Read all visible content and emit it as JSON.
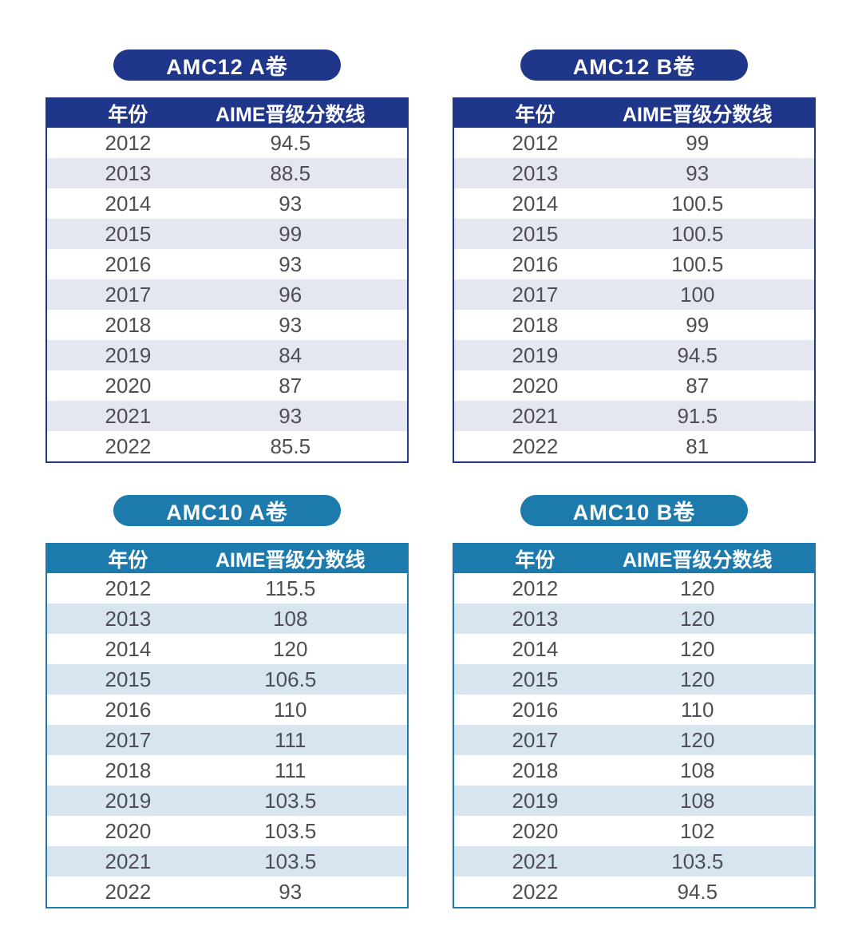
{
  "colors": {
    "navy": "#20368a",
    "teal": "#1d7aad",
    "navy_stripe": "#e5e7f0",
    "teal_stripe": "#d6e5ef",
    "header_text": "#ffffff",
    "cell_text": "#4e4e54",
    "background": "#ffffff"
  },
  "chart_data": [
    {
      "type": "table",
      "variant": "navy",
      "title": "AMC12 A卷",
      "columns": [
        "年份",
        "AIME晋级分数线"
      ],
      "rows": [
        [
          "2012",
          "94.5"
        ],
        [
          "2013",
          "88.5"
        ],
        [
          "2014",
          "93"
        ],
        [
          "2015",
          "99"
        ],
        [
          "2016",
          "93"
        ],
        [
          "2017",
          "96"
        ],
        [
          "2018",
          "93"
        ],
        [
          "2019",
          "84"
        ],
        [
          "2020",
          "87"
        ],
        [
          "2021",
          "93"
        ],
        [
          "2022",
          "85.5"
        ]
      ]
    },
    {
      "type": "table",
      "variant": "navy",
      "title": "AMC12 B卷",
      "columns": [
        "年份",
        "AIME晋级分数线"
      ],
      "rows": [
        [
          "2012",
          "99"
        ],
        [
          "2013",
          "93"
        ],
        [
          "2014",
          "100.5"
        ],
        [
          "2015",
          "100.5"
        ],
        [
          "2016",
          "100.5"
        ],
        [
          "2017",
          "100"
        ],
        [
          "2018",
          "99"
        ],
        [
          "2019",
          "94.5"
        ],
        [
          "2020",
          "87"
        ],
        [
          "2021",
          "91.5"
        ],
        [
          "2022",
          "81"
        ]
      ]
    },
    {
      "type": "table",
      "variant": "teal",
      "title": "AMC10 A卷",
      "columns": [
        "年份",
        "AIME晋级分数线"
      ],
      "rows": [
        [
          "2012",
          "115.5"
        ],
        [
          "2013",
          "108"
        ],
        [
          "2014",
          "120"
        ],
        [
          "2015",
          "106.5"
        ],
        [
          "2016",
          "110"
        ],
        [
          "2017",
          "111"
        ],
        [
          "2018",
          "111"
        ],
        [
          "2019",
          "103.5"
        ],
        [
          "2020",
          "103.5"
        ],
        [
          "2021",
          "103.5"
        ],
        [
          "2022",
          "93"
        ]
      ]
    },
    {
      "type": "table",
      "variant": "teal",
      "title": "AMC10 B卷",
      "columns": [
        "年份",
        "AIME晋级分数线"
      ],
      "rows": [
        [
          "2012",
          "120"
        ],
        [
          "2013",
          "120"
        ],
        [
          "2014",
          "120"
        ],
        [
          "2015",
          "120"
        ],
        [
          "2016",
          "110"
        ],
        [
          "2017",
          "120"
        ],
        [
          "2018",
          "108"
        ],
        [
          "2019",
          "108"
        ],
        [
          "2020",
          "102"
        ],
        [
          "2021",
          "103.5"
        ],
        [
          "2022",
          "94.5"
        ]
      ]
    }
  ]
}
